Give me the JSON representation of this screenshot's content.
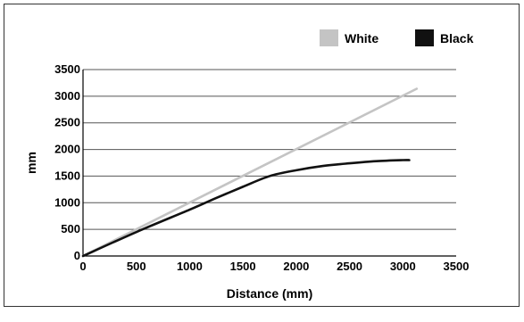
{
  "chart_data": {
    "type": "line",
    "title": "",
    "xlabel": "Distance (mm)",
    "ylabel": "mm",
    "xlim": [
      0,
      3500
    ],
    "ylim": [
      0,
      3500
    ],
    "x_ticks": [
      0,
      500,
      1000,
      1500,
      2000,
      2500,
      3000,
      3500
    ],
    "y_ticks": [
      0,
      500,
      1000,
      1500,
      2000,
      2500,
      3000,
      3500
    ],
    "x_tick_labels": [
      "0",
      "500",
      "1000",
      "1500",
      "2000",
      "2500",
      "3000",
      "3500"
    ],
    "y_tick_labels": [
      "0",
      "500",
      "1000",
      "1500",
      "2000",
      "2500",
      "3000",
      "3500"
    ],
    "grid": "horizontal",
    "legend_position": "top-right",
    "series": [
      {
        "name": "White",
        "color": "#c4c4c4",
        "x": [
          0,
          3130
        ],
        "y": [
          0,
          3140
        ]
      },
      {
        "name": "Black",
        "color": "#111111",
        "x": [
          0,
          500,
          1000,
          1250,
          1500,
          1750,
          2000,
          2250,
          2500,
          2750,
          3000,
          3060
        ],
        "y": [
          0,
          450,
          870,
          1090,
          1300,
          1500,
          1610,
          1690,
          1740,
          1780,
          1800,
          1800
        ]
      }
    ]
  }
}
